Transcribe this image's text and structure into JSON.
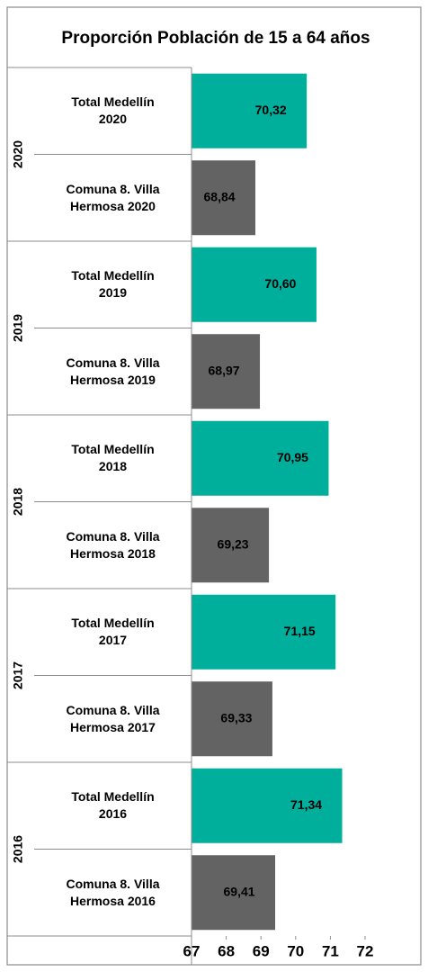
{
  "chart_data": {
    "type": "hbar",
    "title": "Proporción Población de 15 a 64 años",
    "groups": [
      "2020",
      "2019",
      "2018",
      "2017",
      "2016"
    ],
    "categories": [
      "Total Medellín 2020",
      "Comuna 8. Villa Hermosa 2020",
      "Total Medellín 2019",
      "Comuna 8. Villa Hermosa 2019",
      "Total Medellín 2018",
      "Comuna 8. Villa Hermosa 2018",
      "Total Medellín 2017",
      "Comuna 8. Villa Hermosa 2017",
      "Total Medellín 2016",
      "Comuna 8. Villa Hermosa 2016"
    ],
    "values": [
      70.32,
      68.84,
      70.6,
      68.97,
      70.95,
      69.23,
      71.15,
      69.33,
      71.34,
      69.41
    ],
    "value_labels": [
      "70,32",
      "68,84",
      "70,60",
      "68,97",
      "70,95",
      "69,23",
      "71,15",
      "69,33",
      "71,34",
      "69,41"
    ],
    "colors": [
      "#00ae9c",
      "#636363",
      "#00ae9c",
      "#636363",
      "#00ae9c",
      "#636363",
      "#00ae9c",
      "#636363",
      "#00ae9c",
      "#636363"
    ],
    "xlim": [
      67,
      72
    ],
    "xticks": [
      67,
      68,
      69,
      70,
      71,
      72
    ]
  }
}
